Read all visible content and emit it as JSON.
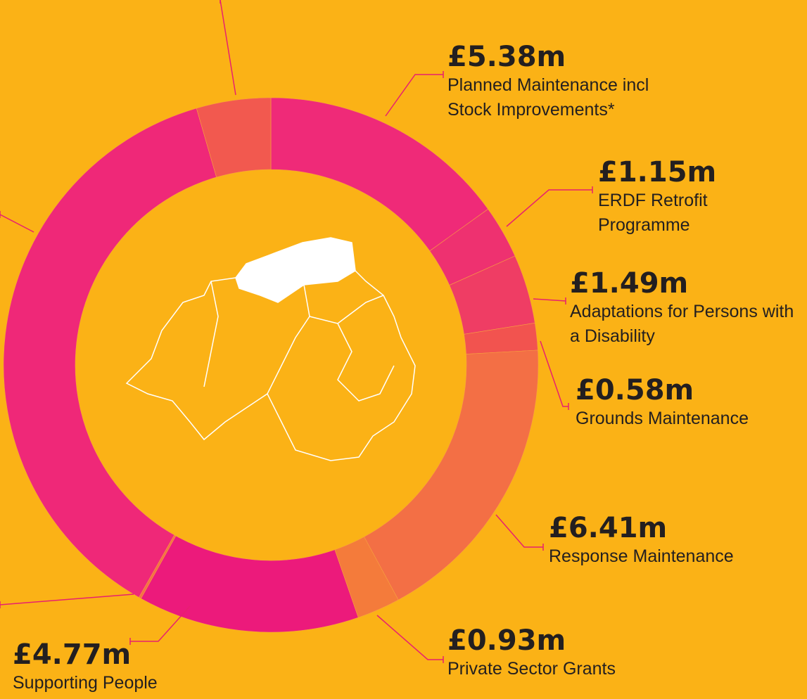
{
  "chart_data": {
    "type": "donut",
    "series": [
      {
        "name": "Planned Maintenance incl Stock Improvements*",
        "value": 5.38,
        "value_label": "£5.38m",
        "color": "#ef2a78"
      },
      {
        "name": "ERDF Retrofit Programme",
        "value": 1.15,
        "value_label": "£1.15m",
        "color": "#ee3170"
      },
      {
        "name": "Adaptations for Persons with a Disability",
        "value": 1.49,
        "value_label": "£1.49m",
        "color": "#ef3d64"
      },
      {
        "name": "Grounds Maintenance",
        "value": 0.58,
        "value_label": "£0.58m",
        "color": "#f2534f"
      },
      {
        "name": "Response Maintenance",
        "value": 6.41,
        "value_label": "£6.41m",
        "color": "#f36f45"
      },
      {
        "name": "Private Sector Grants",
        "value": 0.93,
        "value_label": "£0.93m",
        "color": "#f47b3b"
      },
      {
        "name": "Supporting People",
        "value": 4.77,
        "value_label": "£4.77m",
        "color": "#ec1a7b"
      },
      {
        "value": 0.05,
        "color": "#f36f45"
      },
      {
        "value": 13.3,
        "color": "#ef2878"
      },
      {
        "value": 1.6,
        "color": "#f2594f"
      }
    ]
  }
}
